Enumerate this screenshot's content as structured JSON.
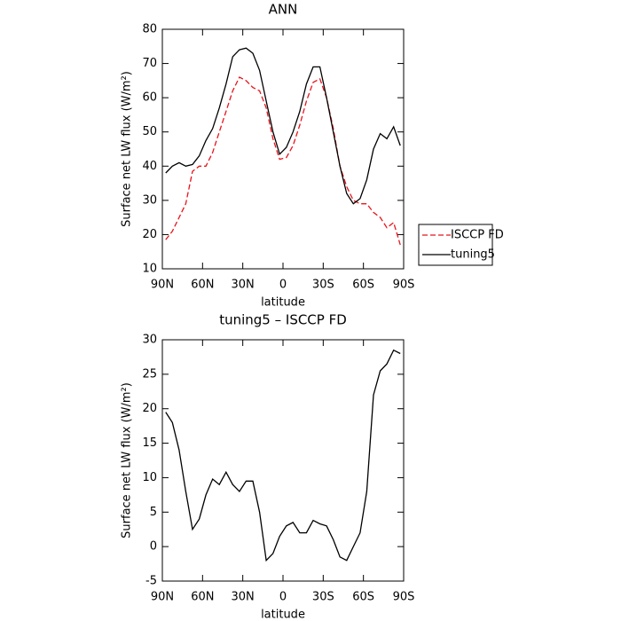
{
  "chart_data": [
    {
      "type": "line",
      "title": "ANN",
      "x_label": "latitude",
      "y_label": "Surface net LW flux (W/m²)",
      "x": [
        87.5,
        82.5,
        77.5,
        72.5,
        67.5,
        62.5,
        57.5,
        52.5,
        47.5,
        42.5,
        37.5,
        32.5,
        27.5,
        22.5,
        17.5,
        12.5,
        7.5,
        2.5,
        -2.5,
        -7.5,
        -12.5,
        -17.5,
        -22.5,
        -27.5,
        -32.5,
        -37.5,
        -42.5,
        -47.5,
        -52.5,
        -57.5,
        -62.5,
        -67.5,
        -72.5,
        -77.5,
        -82.5,
        -87.5
      ],
      "series": [
        {
          "name": "ISCCP FD",
          "color": "#e8141c",
          "dash": true,
          "values": [
            18.5,
            21,
            25,
            29,
            38.5,
            40,
            40,
            44,
            50,
            56,
            62,
            66,
            65,
            63,
            62,
            57,
            48,
            42,
            42.5,
            46,
            52,
            59,
            64.5,
            65.5,
            60,
            51,
            40,
            34,
            30,
            29,
            29,
            26.5,
            25,
            22,
            23.5,
            17
          ]
        },
        {
          "name": "tuning5",
          "color": "#000000",
          "dash": false,
          "values": [
            38,
            40,
            41,
            40,
            40.5,
            43,
            47.5,
            51,
            57,
            64,
            72,
            74,
            74.5,
            73,
            68,
            59,
            50,
            43.5,
            45.5,
            50,
            56,
            64,
            69,
            69,
            60,
            50,
            40,
            32,
            29,
            30.5,
            36,
            45,
            49.5,
            48,
            51.5,
            46
          ]
        }
      ],
      "xlim": [
        90,
        -90
      ],
      "xticks": [
        {
          "value": 90,
          "label": "90N"
        },
        {
          "value": 60,
          "label": "60N"
        },
        {
          "value": 30,
          "label": "30N"
        },
        0,
        {
          "value": -30,
          "label": "30S"
        },
        {
          "value": -60,
          "label": "60S"
        },
        {
          "value": -90,
          "label": "90S"
        }
      ],
      "ylim": [
        10,
        80
      ],
      "yticks": [
        10,
        20,
        30,
        40,
        50,
        60,
        70,
        80
      ],
      "legend": "right"
    },
    {
      "type": "line",
      "title": "tuning5 – ISCCP FD",
      "x_label": "latitude",
      "y_label": "Surface net LW flux (W/m²)",
      "x": [
        87.5,
        82.5,
        77.5,
        72.5,
        67.5,
        62.5,
        57.5,
        52.5,
        47.5,
        42.5,
        37.5,
        32.5,
        27.5,
        22.5,
        17.5,
        12.5,
        7.5,
        2.5,
        -2.5,
        -7.5,
        -12.5,
        -17.5,
        -22.5,
        -27.5,
        -32.5,
        -37.5,
        -42.5,
        -47.5,
        -52.5,
        -57.5,
        -62.5,
        -67.5,
        -72.5,
        -77.5,
        -82.5,
        -87.5
      ],
      "values": [
        19.5,
        18,
        14,
        8,
        2.5,
        4,
        7.5,
        9.8,
        9,
        10.8,
        9,
        8,
        9.5,
        9.5,
        5,
        -2,
        -1,
        1.5,
        3,
        3.5,
        2,
        2,
        3.8,
        3.3,
        3,
        1,
        -1.5,
        -2,
        0,
        2,
        8,
        22,
        25.5,
        26.5,
        28.5,
        28
      ],
      "color": "#000000",
      "xlim": [
        90,
        -90
      ],
      "xticks": [
        {
          "value": 90,
          "label": "90N"
        },
        {
          "value": 60,
          "label": "60N"
        },
        {
          "value": 30,
          "label": "30N"
        },
        0,
        {
          "value": -30,
          "label": "30S"
        },
        {
          "value": -60,
          "label": "60S"
        },
        {
          "value": -90,
          "label": "90S"
        }
      ],
      "ylim": [
        -5,
        30
      ],
      "yticks": [
        -5,
        0,
        5,
        10,
        15,
        20,
        25,
        30
      ]
    }
  ]
}
